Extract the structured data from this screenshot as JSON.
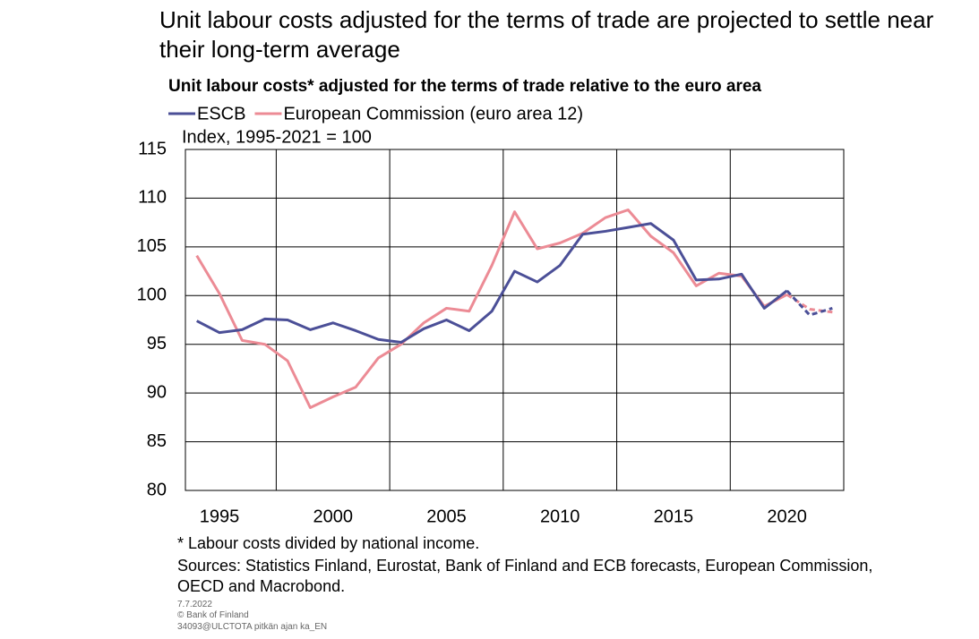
{
  "chart_data": {
    "type": "line",
    "title": "Unit labour costs adjusted for the terms of trade are projected to settle near their long-term average",
    "subtitle": "Unit labour costs* adjusted for the terms of trade relative to the euro area",
    "y_label": "Index, 1995-2021 = 100",
    "note": "* Labour costs divided by national income.",
    "sources": "Sources: Statistics Finland, Eurostat, Bank of Finland and ECB forecasts, European Commission, OECD and Macrobond.",
    "date": "7.7.2022",
    "copyright": "© Bank of Finland",
    "code": "34093@ULCTOTA pitkän ajan ka_EN",
    "x": [
      1994,
      1995,
      1996,
      1997,
      1998,
      1999,
      2000,
      2001,
      2002,
      2003,
      2004,
      2005,
      2006,
      2007,
      2008,
      2009,
      2010,
      2011,
      2012,
      2013,
      2014,
      2015,
      2016,
      2017,
      2018,
      2019,
      2020,
      2021,
      2022
    ],
    "series": [
      {
        "name": "ESCB",
        "color": "#4b4f97",
        "values": [
          97.4,
          96.2,
          96.5,
          97.6,
          97.5,
          96.5,
          97.2,
          96.4,
          95.5,
          95.2,
          96.6,
          97.5,
          96.4,
          98.4,
          102.5,
          101.4,
          103.1,
          106.3,
          106.6,
          107.0,
          107.4,
          105.7,
          101.6,
          101.7,
          102.2,
          98.7,
          100.5,
          98.0,
          98.7
        ]
      },
      {
        "name": "European Commission (euro area 12)",
        "color": "#ec8b95",
        "values": [
          104.1,
          100.2,
          95.4,
          95.0,
          93.3,
          88.5,
          89.6,
          90.6,
          93.6,
          95.0,
          97.2,
          98.7,
          98.4,
          103.1,
          108.6,
          104.8,
          105.4,
          106.4,
          108.0,
          108.8,
          106.1,
          104.4,
          101.0,
          102.3,
          102.0,
          98.9,
          100.1,
          98.6,
          98.3
        ]
      }
    ],
    "dashed_from": 2020,
    "xlim": [
      1993.5,
      2022.5
    ],
    "xticks": [
      1995,
      2000,
      2005,
      2010,
      2015,
      2020
    ],
    "xgrid": [
      1997.5,
      2002.5,
      2007.5,
      2012.5,
      2017.5
    ],
    "ylim": [
      80,
      115
    ],
    "yticks": [
      80,
      85,
      90,
      95,
      100,
      105,
      110,
      115
    ],
    "grid": true
  }
}
